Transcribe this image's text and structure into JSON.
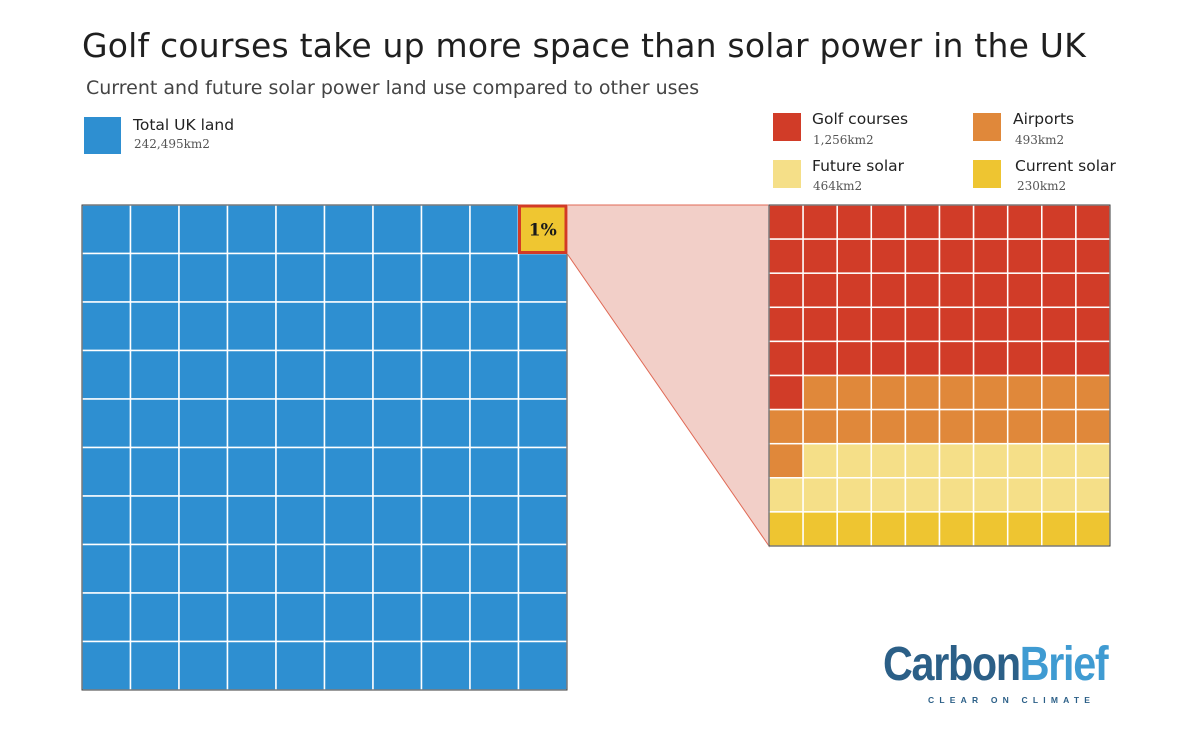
{
  "chart_data": {
    "type": "waffle",
    "title": "Golf courses take up more space than solar power in the UK",
    "subtitle": "Current and future solar power land use compared to other uses",
    "grid": "10x10",
    "main": {
      "label": "Total UK land",
      "value": 242495,
      "value_text": "242,495km2",
      "color": "#2e8fd1",
      "highlight_cell_label": "1%",
      "highlight_fill": "#efc631",
      "highlight_border": "#d23b26"
    },
    "detail": {
      "label": "1%",
      "series": [
        {
          "name": "Golf courses",
          "value": 1256,
          "value_text": "1,256km2",
          "color": "#d13c28",
          "cells": 51
        },
        {
          "name": "Airports",
          "value": 493,
          "value_text": "493km2",
          "color": "#e0883a",
          "cells": 20
        },
        {
          "name": "Future solar",
          "value": 464,
          "value_text": "464km2",
          "color": "#f5df88",
          "cells": 19
        },
        {
          "name": "Current solar",
          "value": 230,
          "value_text": "230km2",
          "color": "#eec531",
          "cells": 10
        }
      ]
    }
  },
  "brand": {
    "name_part1": "Carbon",
    "name_part2": "Brief",
    "tagline": "CLEAR ON CLIMATE"
  }
}
